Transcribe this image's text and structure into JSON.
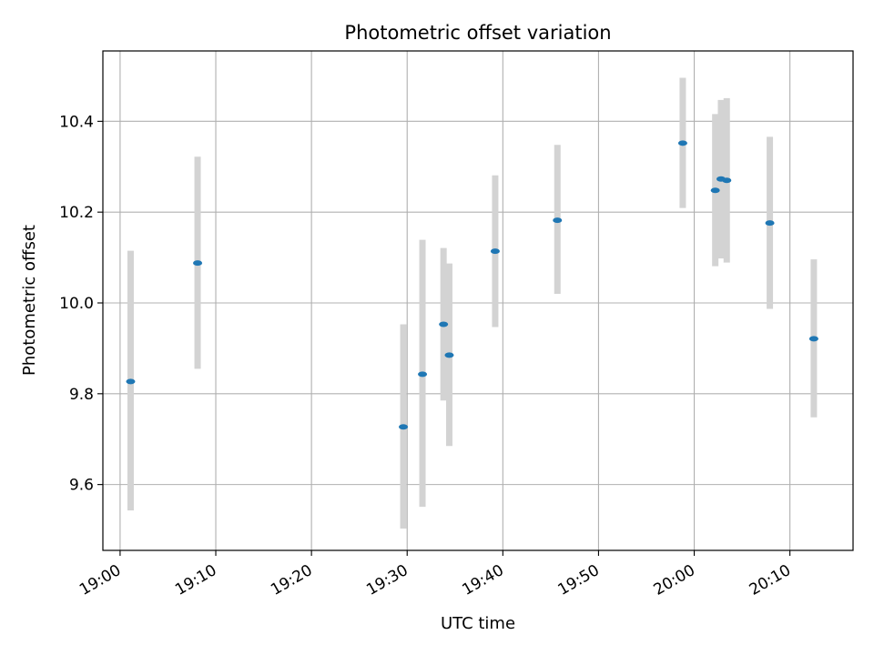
{
  "chart_data": {
    "type": "scatter",
    "title": "Photometric offset variation",
    "xlabel": "UTC time",
    "ylabel": "Photometric offset",
    "x_tick_labels": [
      "19:00",
      "19:10",
      "19:20",
      "19:30",
      "19:40",
      "19:50",
      "20:00",
      "20:10"
    ],
    "y_tick_labels": [
      "9.6",
      "9.8",
      "10.0",
      "10.2",
      "10.4"
    ],
    "y_ticks": [
      9.6,
      9.8,
      10.0,
      10.2,
      10.4
    ],
    "ylim": [
      9.455,
      10.555
    ],
    "xlim": [
      "18:58:12",
      "20:16:36"
    ],
    "grid": true,
    "marker_color": "#1f77b4",
    "errorbar_color": "#d3d3d3",
    "points": [
      {
        "time": "19:01:06",
        "value": 9.827,
        "low": 9.543,
        "high": 10.115
      },
      {
        "time": "19:08:06",
        "value": 10.088,
        "low": 9.855,
        "high": 10.322
      },
      {
        "time": "19:29:36",
        "value": 9.727,
        "low": 9.503,
        "high": 9.953
      },
      {
        "time": "19:31:36",
        "value": 9.843,
        "low": 9.551,
        "high": 10.139
      },
      {
        "time": "19:33:48",
        "value": 9.953,
        "low": 9.785,
        "high": 10.121
      },
      {
        "time": "19:34:24",
        "value": 9.885,
        "low": 9.685,
        "high": 10.087
      },
      {
        "time": "19:39:12",
        "value": 10.114,
        "low": 9.947,
        "high": 10.281
      },
      {
        "time": "19:45:42",
        "value": 10.182,
        "low": 10.02,
        "high": 10.348
      },
      {
        "time": "19:58:48",
        "value": 10.352,
        "low": 10.209,
        "high": 10.496
      },
      {
        "time": "20:02:12",
        "value": 10.248,
        "low": 10.081,
        "high": 10.416
      },
      {
        "time": "20:02:48",
        "value": 10.273,
        "low": 10.098,
        "high": 10.447
      },
      {
        "time": "20:03:24",
        "value": 10.27,
        "low": 10.089,
        "high": 10.451
      },
      {
        "time": "20:07:54",
        "value": 10.176,
        "low": 9.987,
        "high": 10.366
      },
      {
        "time": "20:12:30",
        "value": 9.921,
        "low": 9.748,
        "high": 10.096
      }
    ]
  }
}
